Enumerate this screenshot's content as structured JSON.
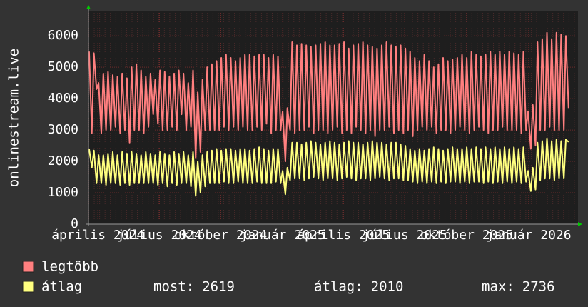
{
  "chart_data": {
    "type": "line",
    "y_label": "onlinestream.live",
    "xlim": [
      0,
      726
    ],
    "ylim": [
      0,
      6800
    ],
    "yticks": [
      0,
      1000,
      2000,
      3000,
      4000,
      5000,
      6000
    ],
    "xticks": [
      {
        "value": 14,
        "label": "április 2024"
      },
      {
        "value": 105,
        "label": "július 2024"
      },
      {
        "value": 196,
        "label": "október 2024"
      },
      {
        "value": 288,
        "label": "január 2025"
      },
      {
        "value": 378,
        "label": "április 2025"
      },
      {
        "value": 469,
        "label": "július 2025"
      },
      {
        "value": 561,
        "label": "október 2025"
      },
      {
        "value": 653,
        "label": "január 2026"
      }
    ],
    "grid": true,
    "x": [
      1,
      5,
      8,
      12,
      15,
      19,
      22,
      26,
      29,
      33,
      36,
      40,
      43,
      47,
      50,
      54,
      57,
      61,
      64,
      68,
      71,
      75,
      78,
      82,
      85,
      89,
      92,
      96,
      99,
      103,
      106,
      110,
      113,
      117,
      120,
      124,
      127,
      131,
      134,
      138,
      141,
      145,
      148,
      152,
      155,
      159,
      162,
      166,
      169,
      173,
      176,
      180,
      183,
      187,
      190,
      194,
      197,
      201,
      204,
      208,
      211,
      215,
      218,
      222,
      225,
      229,
      232,
      236,
      239,
      243,
      246,
      250,
      253,
      257,
      260,
      264,
      267,
      271,
      274,
      278,
      281,
      285,
      288,
      292,
      295,
      299,
      302,
      306,
      309,
      313,
      316,
      320,
      323,
      327,
      330,
      334,
      337,
      341,
      344,
      348,
      351,
      355,
      358,
      362,
      365,
      369,
      372,
      376,
      379,
      383,
      386,
      390,
      393,
      397,
      400,
      404,
      407,
      411,
      414,
      418,
      421,
      425,
      428,
      432,
      435,
      439,
      442,
      446,
      449,
      453,
      456,
      460,
      463,
      467,
      470,
      474,
      477,
      481,
      484,
      488,
      491,
      495,
      498,
      502,
      505,
      509,
      512,
      516,
      519,
      523,
      526,
      530,
      533,
      537,
      540,
      544,
      547,
      551,
      554,
      558,
      561,
      565,
      568,
      572,
      575,
      579,
      582,
      586,
      589,
      593,
      596,
      600,
      603,
      607,
      610,
      614,
      617,
      621,
      624,
      628,
      631,
      635,
      638,
      642,
      645,
      649,
      652,
      656,
      659,
      663,
      666,
      670,
      673,
      677,
      680,
      684,
      687,
      691,
      694,
      698,
      701,
      705,
      708,
      712
    ],
    "series": [
      {
        "name": "legtöbb",
        "color": "#ff7f7f",
        "values": [
          5500,
          2900,
          5450,
          4300,
          4500,
          2900,
          4800,
          3000,
          4850,
          3000,
          4750,
          3100,
          4700,
          2900,
          4800,
          3000,
          4650,
          2600,
          5000,
          3000,
          5100,
          3000,
          4900,
          2900,
          4700,
          3100,
          4800,
          3500,
          4600,
          3200,
          4900,
          3000,
          4850,
          3000,
          4700,
          3100,
          4800,
          3000,
          4900,
          3500,
          4800,
          3000,
          4500,
          3100,
          4900,
          2100,
          4200,
          2300,
          4600,
          3000,
          5000,
          3000,
          5100,
          3000,
          5200,
          3000,
          5300,
          3100,
          5400,
          3000,
          5300,
          3100,
          5200,
          3000,
          5300,
          3100,
          5400,
          3000,
          5400,
          3000,
          5350,
          3100,
          5400,
          3000,
          5400,
          3200,
          5300,
          2900,
          5400,
          3000,
          5350,
          3000,
          3600,
          2000,
          3700,
          3000,
          5800,
          2900,
          5700,
          3000,
          5750,
          3000,
          5700,
          3100,
          5650,
          2900,
          5700,
          3000,
          5750,
          3000,
          5800,
          2900,
          5700,
          3000,
          5700,
          3100,
          5750,
          2900,
          5800,
          3000,
          5600,
          2900,
          5700,
          3100,
          5750,
          3000,
          5800,
          2900,
          5700,
          3000,
          5650,
          2800,
          5600,
          3000,
          5700,
          3000,
          5800,
          3100,
          5700,
          2900,
          5650,
          3000,
          5700,
          2900,
          5600,
          3000,
          5500,
          2800,
          5300,
          3000,
          5200,
          3100,
          5400,
          3000,
          5200,
          3100,
          5000,
          2900,
          5100,
          3000,
          5300,
          3000,
          5200,
          2900,
          5250,
          3000,
          5300,
          3100,
          5400,
          3000,
          5300,
          2900,
          5500,
          3000,
          5400,
          3100,
          5350,
          3000,
          5400,
          2900,
          5500,
          3000,
          5400,
          3000,
          5500,
          3100,
          5400,
          3000,
          5500,
          3000,
          5450,
          3000,
          5400,
          2900,
          5500,
          3000,
          3600,
          2400,
          3800,
          2500,
          5800,
          3000,
          5900,
          3000,
          6100,
          3100,
          5900,
          3000,
          6100,
          3000,
          6050,
          3000,
          6000,
          3700
        ]
      },
      {
        "name": "átlag",
        "color": "#ffff7f",
        "values": [
          2400,
          1800,
          2350,
          1300,
          2200,
          1300,
          2200,
          1250,
          2250,
          1300,
          2300,
          1300,
          2200,
          1250,
          2300,
          1300,
          2250,
          1250,
          2300,
          1300,
          2250,
          1300,
          2200,
          1300,
          2300,
          1300,
          2250,
          1300,
          2200,
          1250,
          2300,
          1300,
          2250,
          1200,
          2200,
          1300,
          2300,
          1250,
          2250,
          1300,
          2300,
          1300,
          2200,
          1200,
          2300,
          900,
          2000,
          1000,
          2200,
          1200,
          2300,
          1300,
          2350,
          1300,
          2400,
          1300,
          2350,
          1350,
          2400,
          1300,
          2400,
          1300,
          2350,
          1350,
          2400,
          1300,
          2400,
          1300,
          2350,
          1300,
          2400,
          1350,
          2450,
          1300,
          2400,
          1300,
          2350,
          1300,
          2400,
          1350,
          2400,
          1300,
          1700,
          950,
          1800,
          1400,
          2600,
          1450,
          2600,
          1450,
          2550,
          1400,
          2600,
          1450,
          2650,
          1500,
          2600,
          1450,
          2550,
          1400,
          2600,
          1450,
          2650,
          1450,
          2600,
          1400,
          2550,
          1450,
          2600,
          1500,
          2650,
          1450,
          2600,
          1400,
          2600,
          1450,
          2550,
          1450,
          2600,
          1400,
          2650,
          1450,
          2600,
          1500,
          2600,
          1450,
          2550,
          1400,
          2600,
          1450,
          2600,
          1450,
          2550,
          1400,
          2500,
          1400,
          2400,
          1350,
          2350,
          1300,
          2400,
          1350,
          2350,
          1300,
          2400,
          1350,
          2450,
          1300,
          2400,
          1350,
          2350,
          1300,
          2400,
          1350,
          2450,
          1350,
          2400,
          1300,
          2400,
          1350,
          2450,
          1300,
          2400,
          1350,
          2450,
          1350,
          2400,
          1300,
          2450,
          1350,
          2400,
          1300,
          2450,
          1350,
          2400,
          1300,
          2450,
          1350,
          2400,
          1300,
          2450,
          1350,
          2400,
          1300,
          2450,
          1350,
          1700,
          1050,
          1800,
          1100,
          2600,
          1400,
          2650,
          1450,
          2736,
          1450,
          2650,
          1400,
          2700,
          1450,
          2650,
          1450,
          2700,
          2619
        ]
      }
    ],
    "legend_stats": [
      {
        "label": "most:",
        "value": 2619
      },
      {
        "label": "átlag:",
        "value": 2010
      },
      {
        "label": "max:",
        "value": 2736
      }
    ]
  }
}
